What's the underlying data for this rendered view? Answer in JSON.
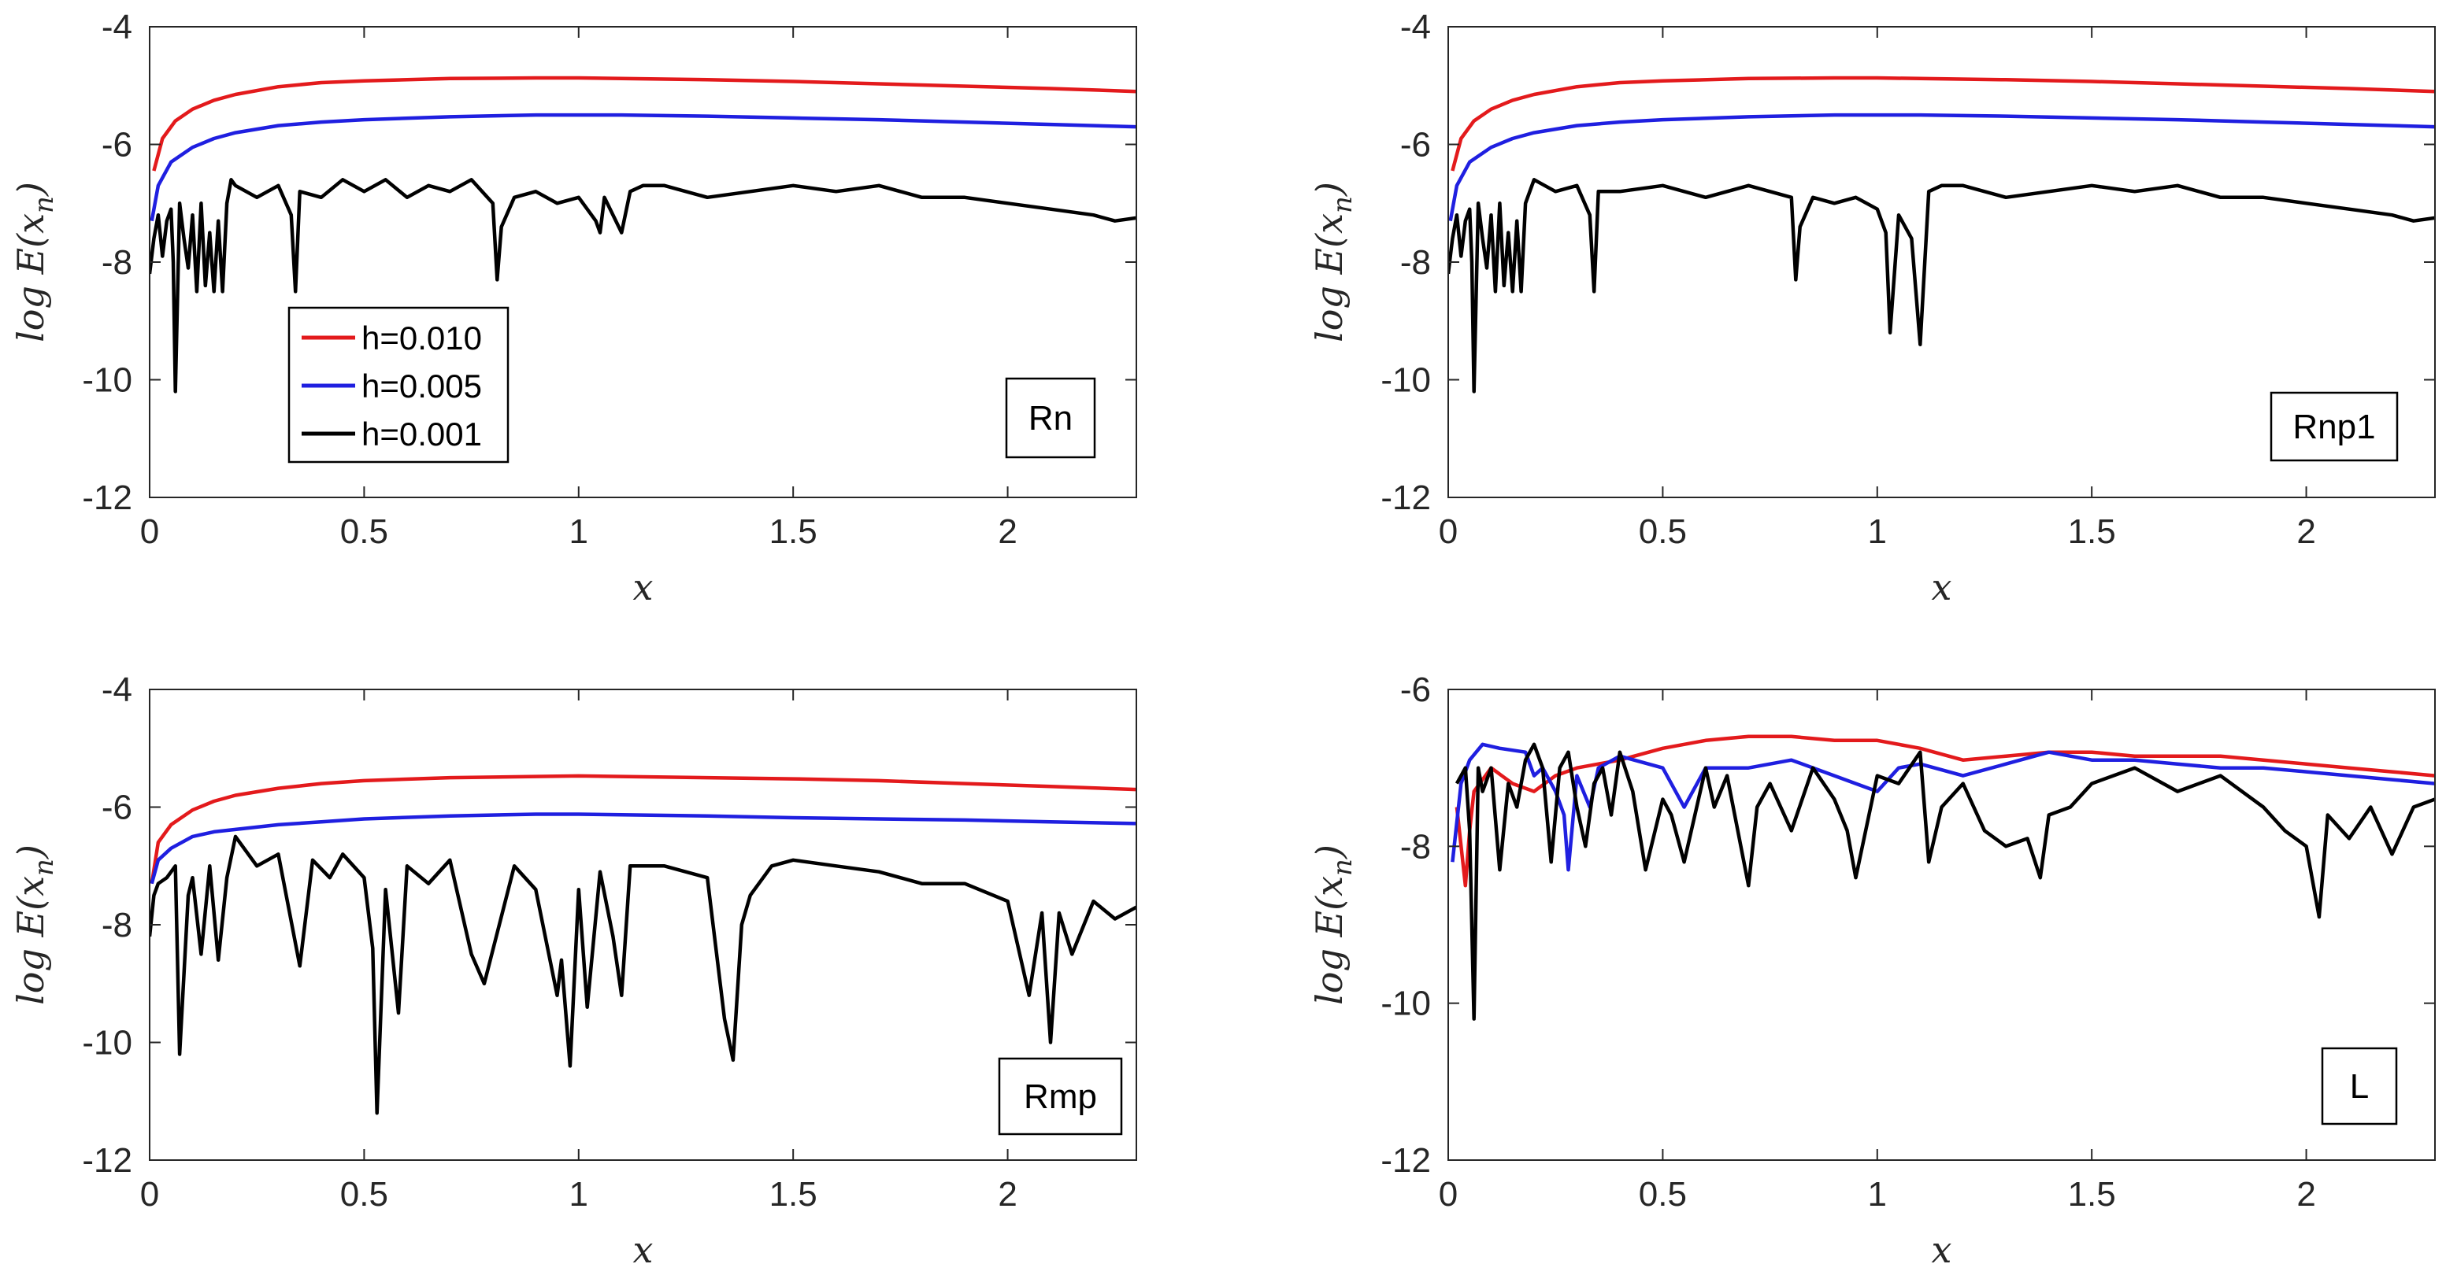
{
  "figure": {
    "colors": {
      "h_0_010": "#e31a1c",
      "h_0_005": "#1f1fe0",
      "h_0_001": "#000000",
      "axis": "#262626"
    }
  },
  "chart_data": [
    {
      "type": "line",
      "panel_tag": "Rn",
      "xlabel": "x",
      "ylabel": "log E(x_n)",
      "xlim": [
        0,
        2.3
      ],
      "ylim": [
        -12,
        -4
      ],
      "xticks": [
        0,
        0.5,
        1,
        1.5,
        2
      ],
      "xtick_labels": [
        "0",
        "0.5",
        "1",
        "1.5",
        "2"
      ],
      "yticks": [
        -12,
        -10,
        -8,
        -6,
        -4
      ],
      "ytick_labels": [
        "-12",
        "-10",
        "-8",
        "-6",
        "-4"
      ],
      "legend": {
        "placement": "lower-left",
        "entries": [
          "h=0.010",
          "h=0.005",
          "h=0.001"
        ]
      },
      "series": [
        {
          "name": "h=0.010",
          "color": "#e31a1c",
          "x": [
            0.01,
            0.03,
            0.06,
            0.1,
            0.15,
            0.2,
            0.3,
            0.4,
            0.5,
            0.7,
            0.9,
            1.0,
            1.1,
            1.3,
            1.5,
            1.7,
            1.9,
            2.1,
            2.3
          ],
          "y": [
            -6.45,
            -5.9,
            -5.6,
            -5.4,
            -5.25,
            -5.15,
            -5.02,
            -4.95,
            -4.92,
            -4.88,
            -4.87,
            -4.87,
            -4.88,
            -4.9,
            -4.93,
            -4.97,
            -5.01,
            -5.05,
            -5.1
          ]
        },
        {
          "name": "h=0.005",
          "color": "#1f1fe0",
          "x": [
            0.005,
            0.02,
            0.05,
            0.1,
            0.15,
            0.2,
            0.3,
            0.4,
            0.5,
            0.7,
            0.9,
            1.0,
            1.1,
            1.3,
            1.5,
            1.7,
            1.9,
            2.1,
            2.3
          ],
          "y": [
            -7.3,
            -6.7,
            -6.3,
            -6.05,
            -5.9,
            -5.8,
            -5.68,
            -5.62,
            -5.58,
            -5.53,
            -5.5,
            -5.5,
            -5.5,
            -5.52,
            -5.55,
            -5.58,
            -5.62,
            -5.66,
            -5.7
          ]
        },
        {
          "name": "h=0.001",
          "color": "#000000",
          "x": [
            0.0,
            0.01,
            0.02,
            0.03,
            0.04,
            0.05,
            0.055,
            0.06,
            0.07,
            0.08,
            0.09,
            0.1,
            0.11,
            0.12,
            0.13,
            0.14,
            0.15,
            0.16,
            0.17,
            0.18,
            0.19,
            0.2,
            0.25,
            0.3,
            0.33,
            0.34,
            0.35,
            0.4,
            0.45,
            0.5,
            0.55,
            0.6,
            0.65,
            0.7,
            0.75,
            0.8,
            0.81,
            0.82,
            0.85,
            0.9,
            0.95,
            1.0,
            1.04,
            1.05,
            1.06,
            1.1,
            1.12,
            1.15,
            1.2,
            1.3,
            1.4,
            1.5,
            1.6,
            1.7,
            1.8,
            1.9,
            2.0,
            2.1,
            2.2,
            2.25,
            2.3
          ],
          "y": [
            -8.2,
            -7.6,
            -7.2,
            -7.9,
            -7.3,
            -7.1,
            -8.0,
            -10.2,
            -7.0,
            -7.6,
            -8.1,
            -7.2,
            -8.5,
            -7.0,
            -8.4,
            -7.5,
            -8.5,
            -7.3,
            -8.5,
            -7.0,
            -6.6,
            -6.7,
            -6.9,
            -6.7,
            -7.2,
            -8.5,
            -6.8,
            -6.9,
            -6.6,
            -6.8,
            -6.6,
            -6.9,
            -6.7,
            -6.8,
            -6.6,
            -7.0,
            -8.3,
            -7.4,
            -6.9,
            -6.8,
            -7.0,
            -6.9,
            -7.3,
            -7.5,
            -6.9,
            -7.5,
            -6.8,
            -6.7,
            -6.7,
            -6.9,
            -6.8,
            -6.7,
            -6.8,
            -6.7,
            -6.9,
            -6.9,
            -7.0,
            -7.1,
            -7.2,
            -7.3,
            -7.25
          ]
        }
      ]
    },
    {
      "type": "line",
      "panel_tag": "Rnp1",
      "xlabel": "x",
      "ylabel": "log E(x_n)",
      "xlim": [
        0,
        2.3
      ],
      "ylim": [
        -12,
        -4
      ],
      "xticks": [
        0,
        0.5,
        1,
        1.5,
        2
      ],
      "xtick_labels": [
        "0",
        "0.5",
        "1",
        "1.5",
        "2"
      ],
      "yticks": [
        -12,
        -10,
        -8,
        -6,
        -4
      ],
      "ytick_labels": [
        "-12",
        "-10",
        "-8",
        "-6",
        "-4"
      ],
      "series": [
        {
          "name": "h=0.010",
          "color": "#e31a1c",
          "x": [
            0.01,
            0.03,
            0.06,
            0.1,
            0.15,
            0.2,
            0.3,
            0.4,
            0.5,
            0.7,
            0.9,
            1.0,
            1.1,
            1.3,
            1.5,
            1.7,
            1.9,
            2.1,
            2.3
          ],
          "y": [
            -6.45,
            -5.9,
            -5.6,
            -5.4,
            -5.25,
            -5.15,
            -5.02,
            -4.95,
            -4.92,
            -4.88,
            -4.87,
            -4.87,
            -4.88,
            -4.9,
            -4.93,
            -4.97,
            -5.01,
            -5.05,
            -5.1
          ]
        },
        {
          "name": "h=0.005",
          "color": "#1f1fe0",
          "x": [
            0.005,
            0.02,
            0.05,
            0.1,
            0.15,
            0.2,
            0.3,
            0.4,
            0.5,
            0.7,
            0.9,
            1.0,
            1.1,
            1.3,
            1.5,
            1.7,
            1.9,
            2.1,
            2.3
          ],
          "y": [
            -7.3,
            -6.7,
            -6.3,
            -6.05,
            -5.9,
            -5.8,
            -5.68,
            -5.62,
            -5.58,
            -5.53,
            -5.5,
            -5.5,
            -5.5,
            -5.52,
            -5.55,
            -5.58,
            -5.62,
            -5.66,
            -5.7
          ]
        },
        {
          "name": "h=0.001",
          "color": "#000000",
          "x": [
            0.0,
            0.01,
            0.02,
            0.03,
            0.04,
            0.05,
            0.055,
            0.06,
            0.07,
            0.08,
            0.09,
            0.1,
            0.11,
            0.12,
            0.13,
            0.14,
            0.15,
            0.16,
            0.17,
            0.18,
            0.2,
            0.25,
            0.3,
            0.33,
            0.34,
            0.35,
            0.4,
            0.5,
            0.6,
            0.7,
            0.8,
            0.81,
            0.82,
            0.85,
            0.9,
            0.95,
            1.0,
            1.02,
            1.03,
            1.05,
            1.08,
            1.1,
            1.12,
            1.15,
            1.2,
            1.3,
            1.4,
            1.5,
            1.6,
            1.7,
            1.8,
            1.9,
            2.0,
            2.1,
            2.2,
            2.25,
            2.3
          ],
          "y": [
            -8.2,
            -7.6,
            -7.2,
            -7.9,
            -7.3,
            -7.1,
            -8.0,
            -10.2,
            -7.0,
            -7.6,
            -8.1,
            -7.2,
            -8.5,
            -7.0,
            -8.4,
            -7.5,
            -8.5,
            -7.3,
            -8.5,
            -7.0,
            -6.6,
            -6.8,
            -6.7,
            -7.2,
            -8.5,
            -6.8,
            -6.8,
            -6.7,
            -6.9,
            -6.7,
            -6.9,
            -8.3,
            -7.4,
            -6.9,
            -7.0,
            -6.9,
            -7.1,
            -7.5,
            -9.2,
            -7.2,
            -7.6,
            -9.4,
            -6.8,
            -6.7,
            -6.7,
            -6.9,
            -6.8,
            -6.7,
            -6.8,
            -6.7,
            -6.9,
            -6.9,
            -7.0,
            -7.1,
            -7.2,
            -7.3,
            -7.25
          ]
        }
      ]
    },
    {
      "type": "line",
      "panel_tag": "Rmp",
      "xlabel": "x",
      "ylabel": "log E(x_n)",
      "xlim": [
        0,
        2.3
      ],
      "ylim": [
        -12,
        -4
      ],
      "xticks": [
        0,
        0.5,
        1,
        1.5,
        2
      ],
      "xtick_labels": [
        "0",
        "0.5",
        "1",
        "1.5",
        "2"
      ],
      "yticks": [
        -12,
        -10,
        -8,
        -6,
        -4
      ],
      "ytick_labels": [
        "-12",
        "-10",
        "-8",
        "-6",
        "-4"
      ],
      "series": [
        {
          "name": "h=0.010",
          "color": "#e31a1c",
          "x": [
            0.005,
            0.02,
            0.05,
            0.1,
            0.15,
            0.2,
            0.3,
            0.4,
            0.5,
            0.7,
            0.9,
            1.0,
            1.1,
            1.3,
            1.5,
            1.7,
            1.9,
            2.1,
            2.3
          ],
          "y": [
            -7.3,
            -6.6,
            -6.3,
            -6.05,
            -5.9,
            -5.8,
            -5.68,
            -5.6,
            -5.55,
            -5.5,
            -5.48,
            -5.47,
            -5.48,
            -5.5,
            -5.52,
            -5.55,
            -5.6,
            -5.65,
            -5.7
          ]
        },
        {
          "name": "h=0.005",
          "color": "#1f1fe0",
          "x": [
            0.005,
            0.02,
            0.05,
            0.1,
            0.15,
            0.2,
            0.3,
            0.4,
            0.5,
            0.7,
            0.9,
            1.0,
            1.1,
            1.3,
            1.5,
            1.7,
            1.9,
            2.1,
            2.3
          ],
          "y": [
            -7.3,
            -6.9,
            -6.7,
            -6.5,
            -6.42,
            -6.38,
            -6.3,
            -6.25,
            -6.2,
            -6.15,
            -6.12,
            -6.12,
            -6.13,
            -6.15,
            -6.18,
            -6.2,
            -6.22,
            -6.25,
            -6.28
          ]
        },
        {
          "name": "h=0.001",
          "color": "#000000",
          "x": [
            0.0,
            0.01,
            0.02,
            0.04,
            0.06,
            0.07,
            0.09,
            0.1,
            0.12,
            0.14,
            0.16,
            0.18,
            0.2,
            0.25,
            0.3,
            0.35,
            0.38,
            0.42,
            0.45,
            0.5,
            0.52,
            0.53,
            0.55,
            0.58,
            0.6,
            0.65,
            0.7,
            0.75,
            0.78,
            0.85,
            0.9,
            0.95,
            0.96,
            0.98,
            1.0,
            1.02,
            1.05,
            1.08,
            1.1,
            1.12,
            1.2,
            1.3,
            1.34,
            1.36,
            1.38,
            1.4,
            1.45,
            1.5,
            1.6,
            1.7,
            1.8,
            1.9,
            2.0,
            2.05,
            2.08,
            2.1,
            2.12,
            2.15,
            2.2,
            2.25,
            2.3
          ],
          "y": [
            -8.2,
            -7.5,
            -7.3,
            -7.2,
            -7.0,
            -10.2,
            -7.5,
            -7.2,
            -8.5,
            -7.0,
            -8.6,
            -7.2,
            -6.5,
            -7.0,
            -6.8,
            -8.7,
            -6.9,
            -7.2,
            -6.8,
            -7.2,
            -8.4,
            -11.2,
            -7.4,
            -9.5,
            -7.0,
            -7.3,
            -6.9,
            -8.5,
            -9.0,
            -7.0,
            -7.4,
            -9.2,
            -8.6,
            -10.4,
            -7.4,
            -9.4,
            -7.1,
            -8.2,
            -9.2,
            -7.0,
            -7.0,
            -7.2,
            -9.6,
            -10.3,
            -8.0,
            -7.5,
            -7.0,
            -6.9,
            -7.0,
            -7.1,
            -7.3,
            -7.3,
            -7.6,
            -9.2,
            -7.8,
            -10.0,
            -7.8,
            -8.5,
            -7.6,
            -7.9,
            -7.7
          ]
        }
      ]
    },
    {
      "type": "line",
      "panel_tag": "L",
      "xlabel": "x",
      "ylabel": "log E(x_n)",
      "xlim": [
        0,
        2.3
      ],
      "ylim": [
        -12,
        -6
      ],
      "xticks": [
        0,
        0.5,
        1,
        1.5,
        2
      ],
      "xtick_labels": [
        "0",
        "0.5",
        "1",
        "1.5",
        "2"
      ],
      "yticks": [
        -12,
        -10,
        -8,
        -6
      ],
      "ytick_labels": [
        "-12",
        "-10",
        "-8",
        "-6"
      ],
      "series": [
        {
          "name": "h=0.010",
          "color": "#e31a1c",
          "x": [
            0.02,
            0.04,
            0.05,
            0.06,
            0.1,
            0.15,
            0.2,
            0.25,
            0.3,
            0.35,
            0.4,
            0.5,
            0.6,
            0.7,
            0.8,
            0.9,
            1.0,
            1.1,
            1.2,
            1.3,
            1.4,
            1.5,
            1.6,
            1.7,
            1.8,
            1.9,
            2.0,
            2.1,
            2.2,
            2.3
          ],
          "y": [
            -7.5,
            -8.5,
            -7.8,
            -7.3,
            -7.0,
            -7.2,
            -7.3,
            -7.1,
            -7.0,
            -6.95,
            -6.9,
            -6.75,
            -6.65,
            -6.6,
            -6.6,
            -6.65,
            -6.65,
            -6.75,
            -6.9,
            -6.85,
            -6.8,
            -6.8,
            -6.85,
            -6.85,
            -6.85,
            -6.9,
            -6.95,
            -7.0,
            -7.05,
            -7.1
          ]
        },
        {
          "name": "h=0.005",
          "color": "#1f1fe0",
          "x": [
            0.01,
            0.03,
            0.05,
            0.08,
            0.12,
            0.18,
            0.2,
            0.22,
            0.25,
            0.27,
            0.28,
            0.3,
            0.33,
            0.35,
            0.4,
            0.5,
            0.55,
            0.6,
            0.7,
            0.8,
            0.9,
            0.95,
            1.0,
            1.05,
            1.1,
            1.2,
            1.3,
            1.4,
            1.5,
            1.6,
            1.7,
            1.8,
            1.9,
            2.0,
            2.1,
            2.2,
            2.3
          ],
          "y": [
            -8.2,
            -7.2,
            -6.9,
            -6.7,
            -6.75,
            -6.8,
            -7.1,
            -7.0,
            -7.3,
            -7.6,
            -8.3,
            -7.1,
            -7.5,
            -7.0,
            -6.85,
            -7.0,
            -7.5,
            -7.0,
            -7.0,
            -6.9,
            -7.1,
            -7.2,
            -7.3,
            -7.0,
            -6.95,
            -7.1,
            -6.95,
            -6.8,
            -6.9,
            -6.9,
            -6.95,
            -7.0,
            -7.0,
            -7.05,
            -7.1,
            -7.15,
            -7.2
          ]
        },
        {
          "name": "h=0.001",
          "color": "#000000",
          "x": [
            0.02,
            0.04,
            0.05,
            0.06,
            0.07,
            0.08,
            0.1,
            0.12,
            0.14,
            0.16,
            0.18,
            0.2,
            0.22,
            0.24,
            0.26,
            0.28,
            0.3,
            0.32,
            0.34,
            0.36,
            0.38,
            0.4,
            0.43,
            0.46,
            0.5,
            0.52,
            0.55,
            0.6,
            0.62,
            0.65,
            0.7,
            0.72,
            0.75,
            0.8,
            0.85,
            0.9,
            0.93,
            0.95,
            1.0,
            1.05,
            1.1,
            1.12,
            1.15,
            1.2,
            1.25,
            1.3,
            1.35,
            1.38,
            1.4,
            1.45,
            1.5,
            1.6,
            1.7,
            1.8,
            1.9,
            1.95,
            2.0,
            2.03,
            2.05,
            2.1,
            2.15,
            2.2,
            2.25,
            2.3
          ],
          "y": [
            -7.2,
            -7.0,
            -7.8,
            -10.2,
            -7.0,
            -7.3,
            -7.0,
            -8.3,
            -7.2,
            -7.5,
            -6.9,
            -6.7,
            -7.0,
            -8.2,
            -7.0,
            -6.8,
            -7.5,
            -8.0,
            -7.2,
            -7.0,
            -7.6,
            -6.8,
            -7.3,
            -8.3,
            -7.4,
            -7.6,
            -8.2,
            -7.0,
            -7.5,
            -7.1,
            -8.5,
            -7.5,
            -7.2,
            -7.8,
            -7.0,
            -7.4,
            -7.8,
            -8.4,
            -7.1,
            -7.2,
            -6.8,
            -8.2,
            -7.5,
            -7.2,
            -7.8,
            -8.0,
            -7.9,
            -8.4,
            -7.6,
            -7.5,
            -7.2,
            -7.0,
            -7.3,
            -7.1,
            -7.5,
            -7.8,
            -8.0,
            -8.9,
            -7.6,
            -7.9,
            -7.5,
            -8.1,
            -7.5,
            -7.4
          ]
        }
      ]
    }
  ]
}
